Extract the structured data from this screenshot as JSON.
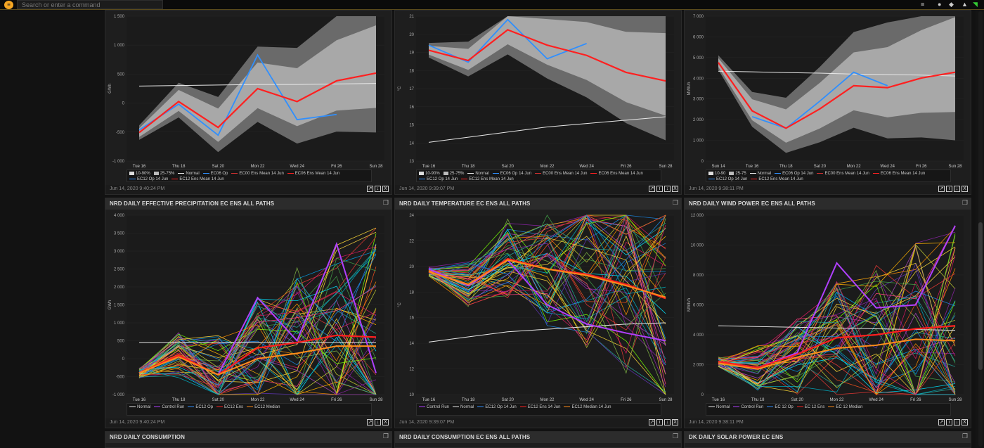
{
  "topbar": {
    "search_placeholder": "Search or enter a command",
    "icons": [
      "menu-icon",
      "user-icon",
      "chat-icon",
      "bell-icon",
      "wifi-icon"
    ]
  },
  "panels": [
    {
      "id": "p1",
      "title": "",
      "time": "Jun 14, 2020 9:40:24 PM",
      "unit": "GWh",
      "yticks": [
        "1 500",
        "1 000",
        "500",
        "0",
        "-500",
        "-1 000"
      ],
      "xticks": [
        "Tue 16",
        "Thu 18",
        "Sat 20",
        "Mon 22",
        "Wed 24",
        "Fri 26",
        "Sun 28"
      ],
      "legend": [
        "10-90%",
        "25-75%",
        "Normal",
        "EC06 Op",
        "EC00 Ens Mean 14 Jun",
        "EC06 Ens Mean 14 Jun",
        "EC12 Op 14 Jun",
        "EC12 Ens Mean 14 Jun"
      ]
    },
    {
      "id": "p2",
      "title": "",
      "time": "Jun 14, 2020 9:39:07 PM",
      "unit": "°C",
      "yticks": [
        "21",
        "20",
        "19",
        "18",
        "17",
        "16",
        "15",
        "14",
        "13"
      ],
      "xticks": [
        "Tue 16",
        "Thu 18",
        "Sat 20",
        "Mon 22",
        "Wed 24",
        "Fri 26",
        "Sun 28"
      ],
      "legend": [
        "10-90%",
        "25-75%",
        "Normal",
        "EC06 Op 14 Jun",
        "EC00 Ens Mean 14 Jun",
        "EC06 Ens Mean 14 Jun",
        "EC12 Op 14 Jun",
        "EC12 Ens Mean 14 Jun"
      ]
    },
    {
      "id": "p3",
      "title": "",
      "time": "Jun 14, 2020 9:38:11 PM",
      "unit": "MWh/h",
      "yticks": [
        "7 000",
        "6 000",
        "5 000",
        "4 000",
        "3 000",
        "2 000",
        "1 000",
        "0"
      ],
      "xticks": [
        "Sun 14",
        "Tue 16",
        "Thu 18",
        "Sat 20",
        "Mon 22",
        "Wed 24",
        "Fri 26",
        "Sun 28"
      ],
      "legend": [
        "10-90",
        "25-75",
        "Normal",
        "EC06 Op 14 Jun",
        "EC00 Ens Mean 14 Jun",
        "EC06 Ens Mean 14 Jun",
        "EC12 Op 14 Jun",
        "EC12 Ens Mean 14 Jun"
      ]
    },
    {
      "id": "p4",
      "title": "NRD DAILY EFFECTIVE PRECIPITATION EC ENS ALL PATHS",
      "time": "Jun 14, 2020 9:40:24 PM",
      "unit": "GWh",
      "yticks": [
        "4 000",
        "3 500",
        "3 000",
        "2 500",
        "2 000",
        "1 500",
        "1 000",
        "500",
        "0",
        "-500",
        "-1 000"
      ],
      "xticks": [
        "Tue 16",
        "Thu 18",
        "Sat 20",
        "Mon 22",
        "Wed 24",
        "Fri 26",
        "Sun 28"
      ],
      "legend": [
        "Normal",
        "Control Run",
        "EC12 Op",
        "EC12 Ens",
        "EC12 Median"
      ]
    },
    {
      "id": "p5",
      "title": "NRD DAILY TEMPERATURE EC ENS ALL PATHS",
      "time": "Jun 14, 2020 9:39:07 PM",
      "unit": "°C",
      "yticks": [
        "24",
        "22",
        "20",
        "18",
        "16",
        "14",
        "12",
        "10"
      ],
      "xticks": [
        "Tue 16",
        "Thu 18",
        "Sat 20",
        "Mon 22",
        "Wed 24",
        "Fri 26",
        "Sun 28"
      ],
      "legend": [
        "Control Run",
        "Normal",
        "EC12 Op 14 Jun",
        "EC12 Ens 14 Jun",
        "EC12 Median 14 Jun"
      ]
    },
    {
      "id": "p6",
      "title": "NRD DAILY WIND POWER EC ENS ALL PATHS",
      "time": "Jun 14, 2020 9:38:11 PM",
      "unit": "MWh/h",
      "yticks": [
        "12 000",
        "10 000",
        "8 000",
        "6 000",
        "4 000",
        "2 000",
        "0"
      ],
      "xticks": [
        "Tue 16",
        "Thu 18",
        "Sat 20",
        "Mon 22",
        "Wed 24",
        "Fri 26",
        "Sun 28"
      ],
      "legend": [
        "Normal",
        "Control Run",
        "EC 12 Op",
        "EC 12 Ens",
        "EC 12 Median"
      ]
    },
    {
      "id": "p7",
      "title": "NRD DAILY CONSUMPTION"
    },
    {
      "id": "p8",
      "title": "NRD DAILY CONSUMPTION EC ENS ALL PATHS"
    },
    {
      "id": "p9",
      "title": "DK DAILY SOLAR POWER EC ENS"
    }
  ],
  "colors": {
    "normal": "#e8e8e8",
    "op": "#2f8fff",
    "ens_mean": "#ff2020",
    "ens_mean_thin": "#d03030",
    "control": "#b040ff",
    "median": "#ff8c1a",
    "band_outer": "#6a6a6a",
    "band_inner": "#a8a8a8"
  },
  "chart_data": [
    {
      "type": "line",
      "panel": "p1",
      "ylim": [
        -1000,
        1800
      ],
      "x": [
        "Tue 16",
        "Thu 18",
        "Sat 20",
        "Mon 22",
        "Wed 24",
        "Fri 26",
        "Sun 28"
      ],
      "series": [
        {
          "name": "Normal",
          "values": [
            450,
            460,
            470,
            480,
            480,
            490,
            500
          ]
        },
        {
          "name": "EC06 Op",
          "values": [
            -400,
            100,
            -500,
            1050,
            -200,
            -100,
            null
          ]
        },
        {
          "name": "EC12 Ens Mean 14 Jun",
          "values": [
            -450,
            150,
            -350,
            400,
            150,
            550,
            700
          ]
        }
      ]
    },
    {
      "type": "line",
      "panel": "p2",
      "ylim": [
        13,
        21.5
      ],
      "x": [
        "Tue 16",
        "Thu 18",
        "Sat 20",
        "Mon 22",
        "Wed 24",
        "Fri 26",
        "Sun 28"
      ],
      "series": [
        {
          "name": "Normal",
          "values": [
            14.1,
            14.4,
            14.7,
            15.0,
            15.2,
            15.4,
            15.6
          ]
        },
        {
          "name": "EC06 Op 14 Jun",
          "values": [
            19.8,
            18.8,
            21.3,
            19.0,
            19.9,
            null,
            null
          ]
        },
        {
          "name": "EC12 Ens Mean 14 Jun",
          "values": [
            19.5,
            18.9,
            20.7,
            19.8,
            19.2,
            18.2,
            17.7
          ]
        }
      ]
    },
    {
      "type": "line",
      "panel": "p3",
      "ylim": [
        0,
        7500
      ],
      "x": [
        "Sun 14",
        "Tue 16",
        "Thu 18",
        "Sat 20",
        "Mon 22",
        "Wed 24",
        "Fri 26",
        "Sun 28"
      ],
      "series": [
        {
          "name": "Normal",
          "values": [
            4650,
            4620,
            4580,
            4550,
            4500,
            4480,
            4450,
            4400
          ]
        },
        {
          "name": "EC06 Op 14 Jun",
          "values": [
            null,
            2300,
            1700,
            3100,
            4600,
            3900,
            null,
            null
          ]
        },
        {
          "name": "EC12 Ens Mean 14 Jun",
          "values": [
            5100,
            2600,
            1700,
            2700,
            3900,
            3800,
            4300,
            4600
          ]
        }
      ]
    },
    {
      "type": "line",
      "panel": "p4",
      "ylim": [
        -1000,
        4000
      ],
      "x": [
        "Tue 16",
        "Thu 18",
        "Sat 20",
        "Mon 22",
        "Wed 24",
        "Fri 26",
        "Sun 28"
      ],
      "series": [
        {
          "name": "Normal",
          "values": [
            450,
            450,
            450,
            450,
            450,
            450,
            450
          ]
        },
        {
          "name": "Control Run",
          "values": [
            -400,
            100,
            -450,
            1700,
            500,
            3200,
            -400
          ]
        },
        {
          "name": "EC12 Ens",
          "values": [
            -400,
            100,
            -450,
            300,
            450,
            650,
            600
          ]
        },
        {
          "name": "EC12 Median",
          "values": [
            -400,
            50,
            -450,
            0,
            150,
            350,
            350
          ]
        }
      ]
    },
    {
      "type": "line",
      "panel": "p5",
      "ylim": [
        10,
        24
      ],
      "x": [
        "Tue 16",
        "Thu 18",
        "Sat 20",
        "Mon 22",
        "Wed 24",
        "Fri 26",
        "Sun 28"
      ],
      "series": [
        {
          "name": "Normal",
          "values": [
            14.1,
            14.5,
            14.9,
            15.1,
            15.3,
            15.5,
            15.6
          ]
        },
        {
          "name": "Control Run",
          "values": [
            19.8,
            18.5,
            20.5,
            17.0,
            15.5,
            14.8,
            14.2
          ]
        },
        {
          "name": "EC12 Ens 14 Jun",
          "values": [
            19.6,
            18.6,
            20.6,
            19.8,
            19.4,
            18.6,
            17.5
          ]
        },
        {
          "name": "EC12 Median 14 Jun",
          "values": [
            19.6,
            18.6,
            20.5,
            19.8,
            19.3,
            18.5,
            17.6
          ]
        }
      ]
    },
    {
      "type": "line",
      "panel": "p6",
      "ylim": [
        0,
        12000
      ],
      "x": [
        "Tue 16",
        "Thu 18",
        "Sat 20",
        "Mon 22",
        "Wed 24",
        "Fri 26",
        "Sun 28"
      ],
      "series": [
        {
          "name": "Normal",
          "values": [
            4600,
            4550,
            4500,
            4450,
            4400,
            4350,
            4300
          ]
        },
        {
          "name": "Control Run",
          "values": [
            2200,
            1800,
            2800,
            8800,
            5800,
            6000,
            11300
          ]
        },
        {
          "name": "EC 12 Ens",
          "values": [
            2200,
            1800,
            2700,
            3800,
            4000,
            4400,
            4600
          ]
        },
        {
          "name": "EC 12 Median",
          "values": [
            2100,
            1700,
            2500,
            3100,
            3300,
            3700,
            3600
          ]
        }
      ]
    }
  ]
}
